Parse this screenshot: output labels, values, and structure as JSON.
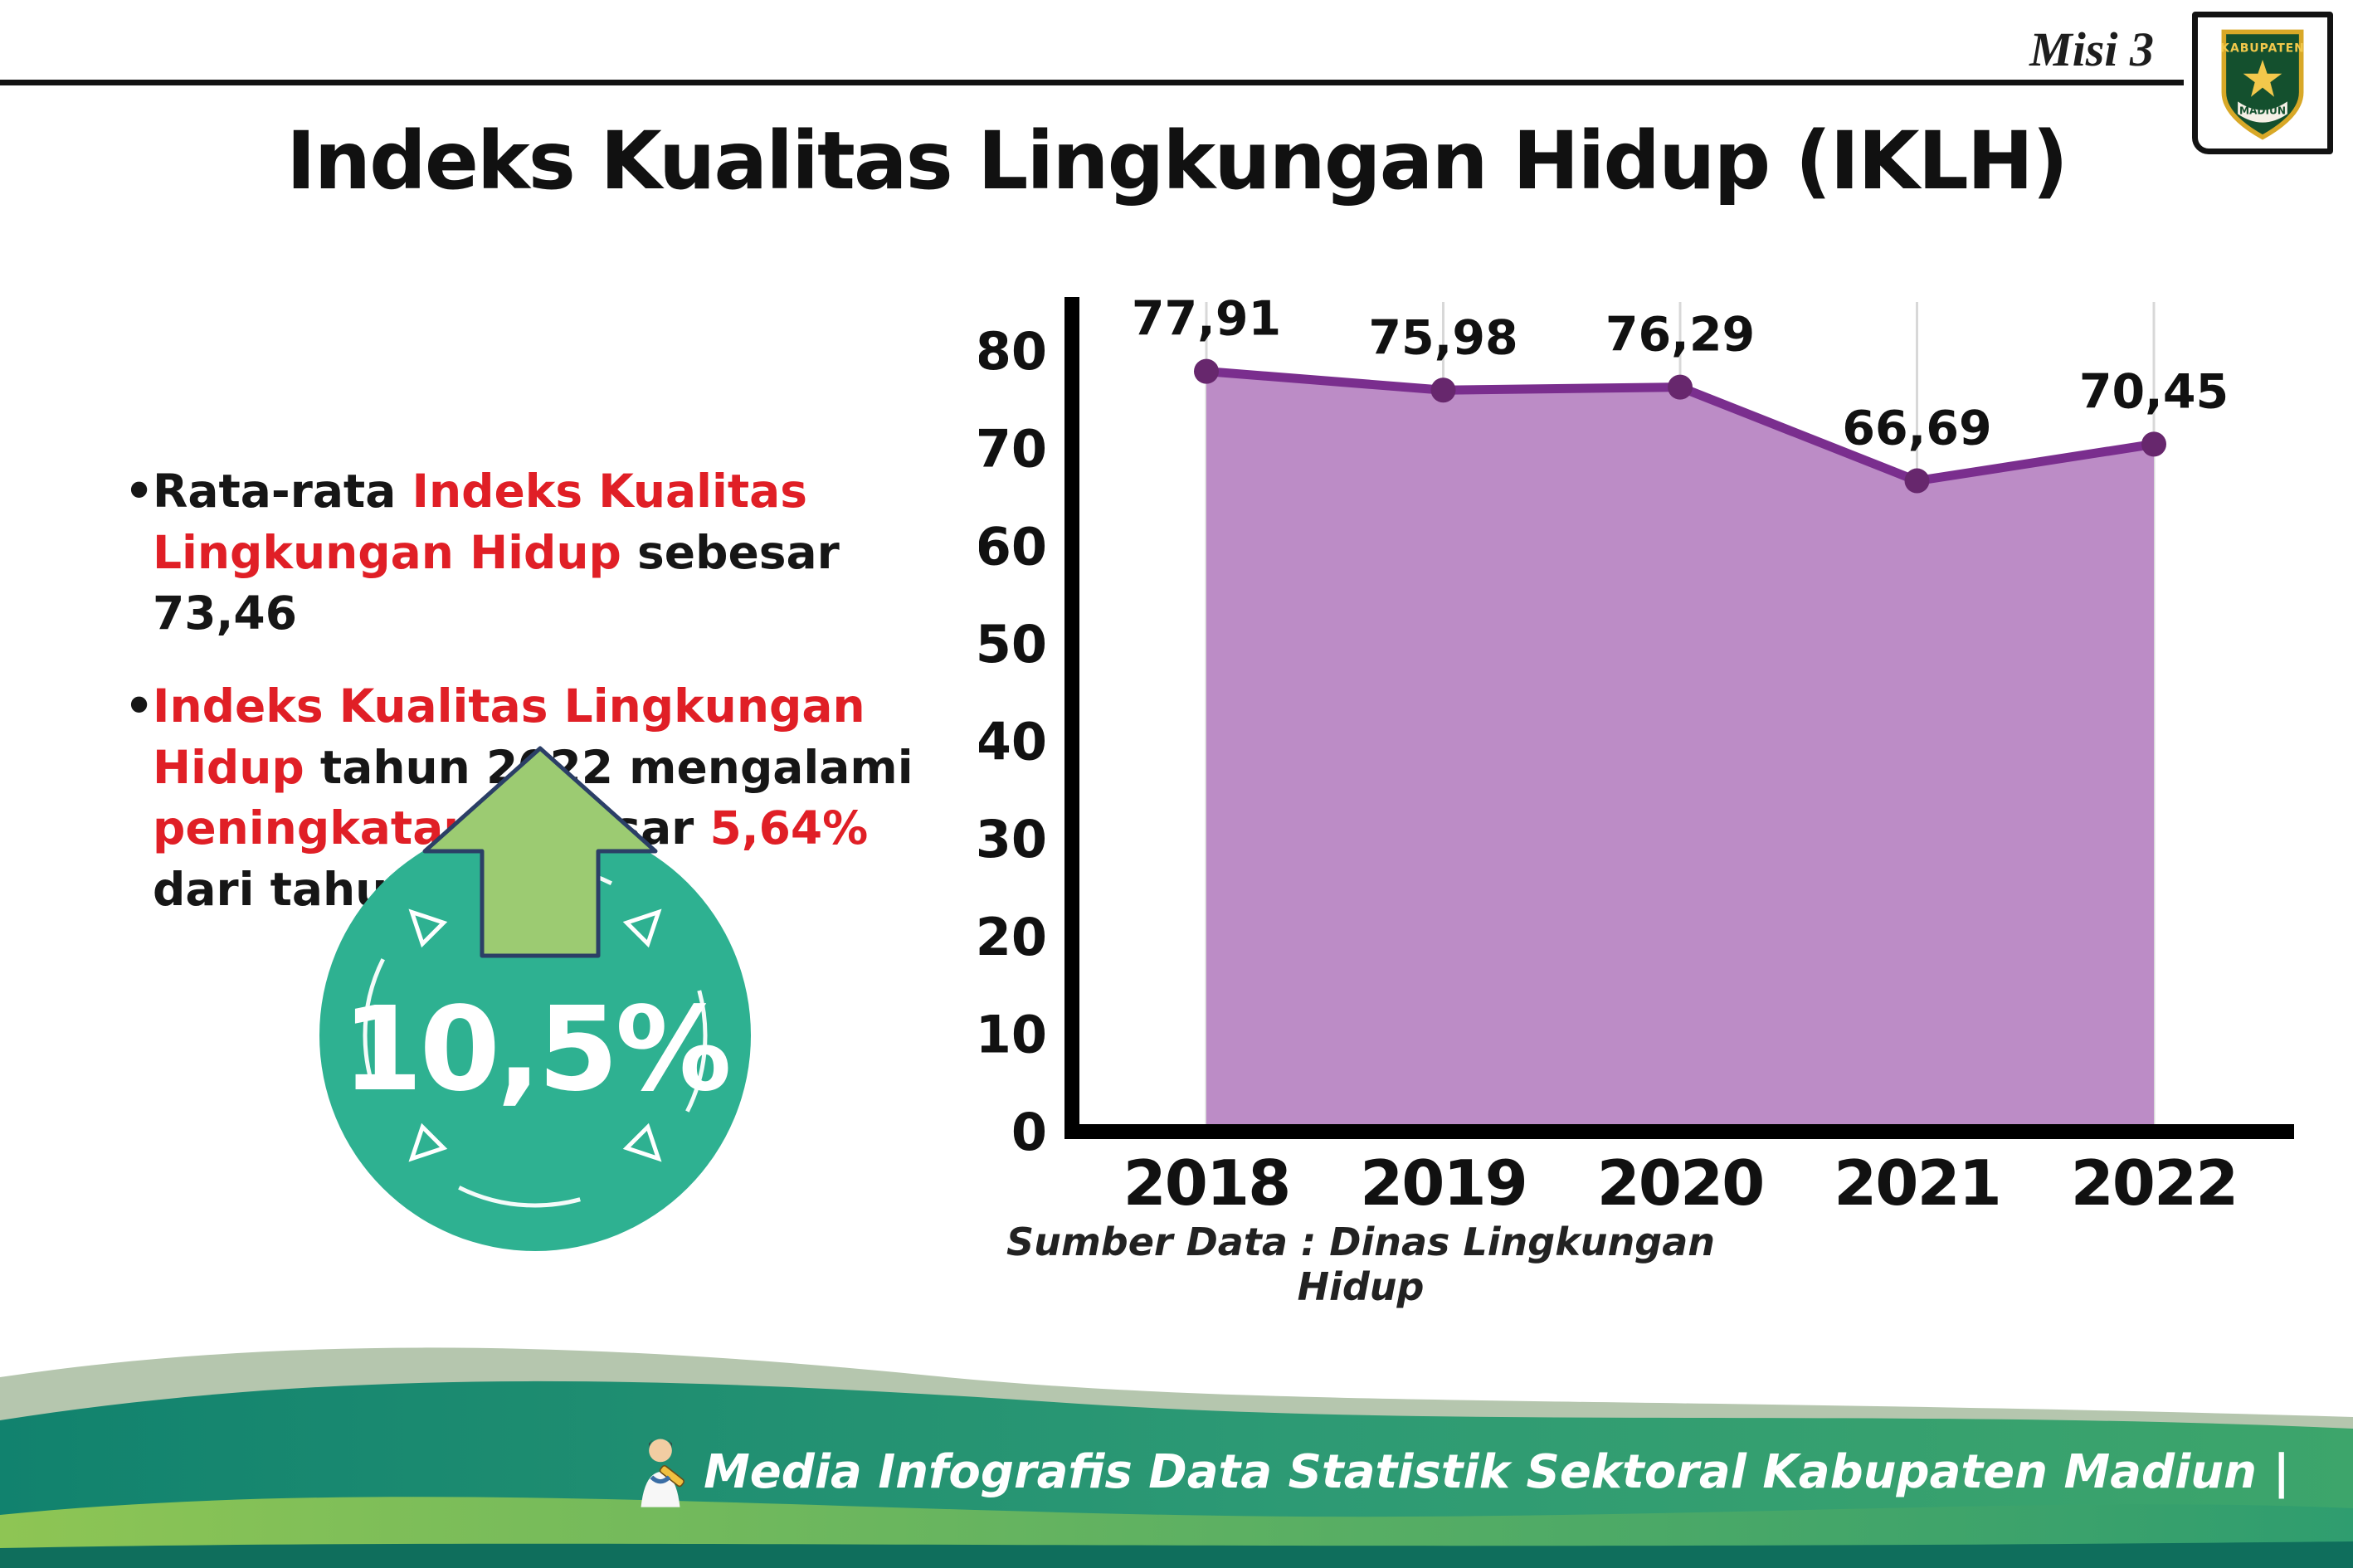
{
  "meta": {
    "misi_label": "Misi 3",
    "title": "Indeks Kualitas Lingkungan Hidup (IKLH)"
  },
  "logo": {
    "line1": "KABUPATEN",
    "line2": "MADIUN"
  },
  "bullets": [
    {
      "segments": [
        {
          "text": "Rata-rata ",
          "color": "black"
        },
        {
          "text": "Indeks Kualitas Lingkungan Hidup",
          "color": "red"
        },
        {
          "text": " sebesar 73,46",
          "color": "black"
        }
      ]
    },
    {
      "segments": [
        {
          "text": "Indeks Kualitas Lingkungan Hidup",
          "color": "red"
        },
        {
          "text": " tahun 2022 mengalami ",
          "color": "black"
        },
        {
          "text": "peningkatan",
          "color": "red"
        },
        {
          "text": " sebesar ",
          "color": "black"
        },
        {
          "text": "5,64%",
          "color": "red"
        },
        {
          "text": " dari tahun 2021",
          "color": "black"
        }
      ]
    }
  ],
  "badge": {
    "value": "10,5%"
  },
  "chart_data": {
    "type": "area",
    "categories": [
      "2018",
      "2019",
      "2020",
      "2021",
      "2022"
    ],
    "values": [
      77.91,
      75.98,
      76.29,
      66.69,
      70.45
    ],
    "value_labels": [
      "77,91",
      "75,98",
      "76,29",
      "66,69",
      "70,45"
    ],
    "title": "",
    "xlabel": "",
    "ylabel": "",
    "ylim": [
      0,
      80
    ],
    "yticks": [
      0,
      10,
      20,
      30,
      40,
      50,
      60,
      70,
      80
    ],
    "grid": true,
    "legend": false,
    "line_color": "#7a2e8e",
    "fill_color": "#bc8cc6",
    "dot_color": "#67276d",
    "source": "Sumber Data : Dinas Lingkungan Hidup"
  },
  "footer": {
    "text": "Media Infografis Data Statistik Sektoral Kabupaten Madiun |"
  },
  "colors": {
    "red": "#e01f26",
    "text": "#1d1d1f",
    "teal_badge": "#2eb191",
    "arrow_green": "#9ccb72",
    "footer_teal": "#11826e",
    "footer_green": "#8ec554",
    "footer_sage": "#b5c6ae"
  }
}
